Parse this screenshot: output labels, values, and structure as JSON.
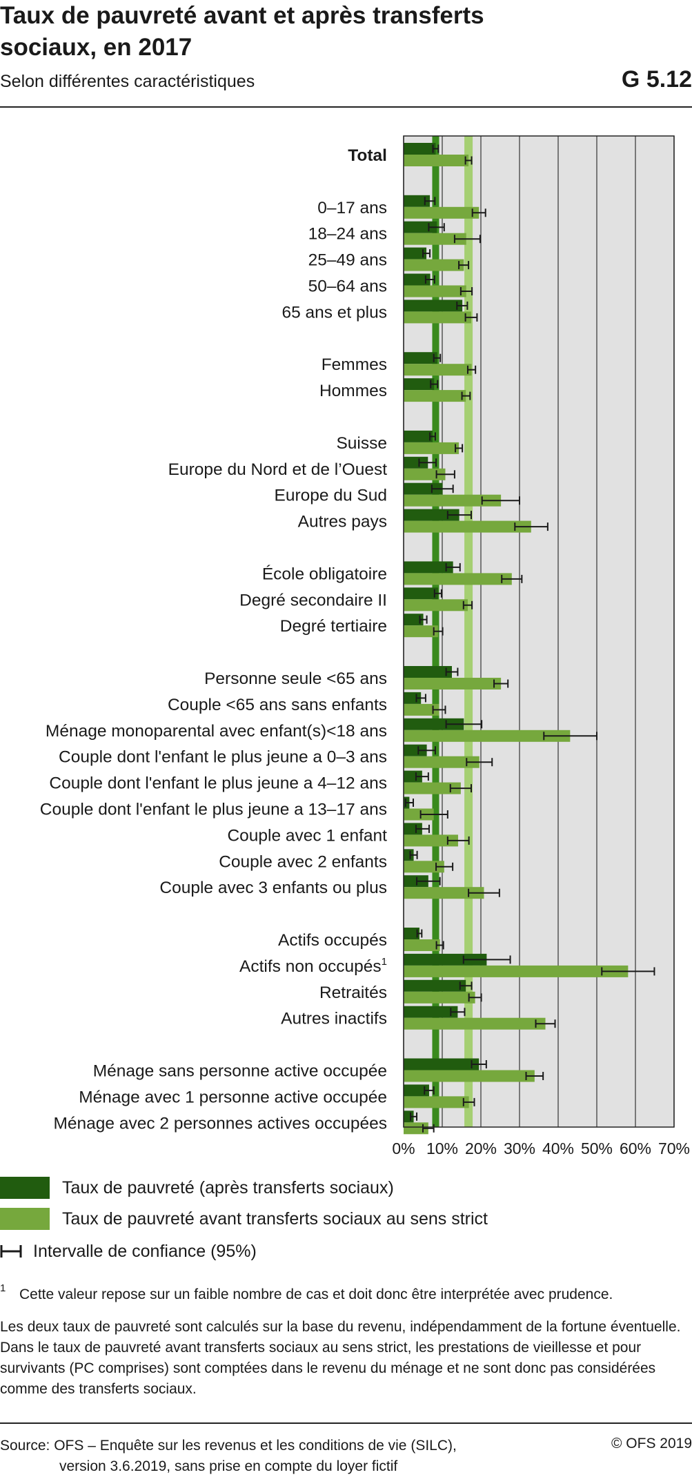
{
  "header": {
    "title": "Taux de pauvreté avant et après transferts sociaux, en 2017",
    "subtitle": "Selon différentes caractéristiques",
    "code": "G 5.12"
  },
  "chart_data": {
    "type": "bar",
    "orientation": "horizontal",
    "xlim": [
      0,
      70
    ],
    "x_ticks": [
      "0%",
      "10%",
      "20%",
      "30%",
      "40%",
      "50%",
      "60%",
      "70%"
    ],
    "grid": true,
    "reference_lines": {
      "after_total": 8.3,
      "before_total": 16.8
    },
    "groups": [
      {
        "categories": [
          {
            "label": "Total",
            "bold": true,
            "after": 8.3,
            "after_ci": [
              7.6,
              9.0
            ],
            "before": 16.8,
            "before_ci": [
              16.0,
              17.6
            ]
          }
        ]
      },
      {
        "categories": [
          {
            "label": "0–17 ans",
            "after": 6.8,
            "after_ci": [
              5.5,
              8.1
            ],
            "before": 19.5,
            "before_ci": [
              17.8,
              21.2
            ]
          },
          {
            "label": "18–24 ans",
            "after": 8.6,
            "after_ci": [
              6.5,
              10.5
            ],
            "before": 16.2,
            "before_ci": [
              13.2,
              19.8
            ]
          },
          {
            "label": "25–49 ans",
            "after": 5.9,
            "after_ci": [
              5.0,
              6.8
            ],
            "before": 15.6,
            "before_ci": [
              14.3,
              16.8
            ]
          },
          {
            "label": "50–64 ans",
            "after": 6.9,
            "after_ci": [
              5.7,
              8.0
            ],
            "before": 16.2,
            "before_ci": [
              14.8,
              17.7
            ]
          },
          {
            "label": "65 ans et plus",
            "after": 15.2,
            "after_ci": [
              13.8,
              16.5
            ],
            "before": 17.5,
            "before_ci": [
              16.0,
              19.0
            ]
          }
        ]
      },
      {
        "categories": [
          {
            "label": "Femmes",
            "after": 8.7,
            "after_ci": [
              7.8,
              9.5
            ],
            "before": 17.6,
            "before_ci": [
              16.6,
              18.6
            ]
          },
          {
            "label": "Hommes",
            "after": 7.9,
            "after_ci": [
              7.0,
              8.8
            ],
            "before": 16.1,
            "before_ci": [
              15.1,
              17.2
            ]
          }
        ]
      },
      {
        "categories": [
          {
            "label": "Suisse",
            "after": 7.5,
            "after_ci": [
              6.8,
              8.2
            ],
            "before": 14.3,
            "before_ci": [
              13.4,
              15.2
            ]
          },
          {
            "label": "Europe du Nord et de l’Ouest",
            "after": 6.3,
            "after_ci": [
              4.0,
              8.4
            ],
            "before": 10.8,
            "before_ci": [
              8.5,
              13.2
            ]
          },
          {
            "label": "Europe du Sud",
            "after": 10.1,
            "after_ci": [
              7.3,
              12.8
            ],
            "before": 25.2,
            "before_ci": [
              20.3,
              30.0
            ]
          },
          {
            "label": "Autres pays",
            "after": 14.4,
            "after_ci": [
              11.4,
              17.5
            ],
            "before": 33.0,
            "before_ci": [
              28.8,
              37.3
            ]
          }
        ]
      },
      {
        "categories": [
          {
            "label": "École obligatoire",
            "after": 12.8,
            "after_ci": [
              11.0,
              14.6
            ],
            "before": 28.0,
            "before_ci": [
              25.4,
              30.6
            ]
          },
          {
            "label": "Degré secondaire II",
            "after": 8.9,
            "after_ci": [
              8.0,
              9.8
            ],
            "before": 16.6,
            "before_ci": [
              15.5,
              17.7
            ]
          },
          {
            "label": "Degré tertiaire",
            "after": 5.1,
            "after_ci": [
              4.2,
              6.0
            ],
            "before": 8.9,
            "before_ci": [
              7.8,
              10.1
            ]
          }
        ]
      },
      {
        "categories": [
          {
            "label": "Personne seule  <65 ans",
            "after": 12.5,
            "after_ci": [
              11.0,
              14.0
            ],
            "before": 25.2,
            "before_ci": [
              23.4,
              27.0
            ]
          },
          {
            "label": "Couple  <65 ans sans enfants",
            "after": 4.5,
            "after_ci": [
              3.3,
              5.7
            ],
            "before": 9.2,
            "before_ci": [
              7.6,
              10.8
            ]
          },
          {
            "label": "Ménage monoparental avec enfant(s)<18 ans",
            "after": 15.6,
            "after_ci": [
              11.0,
              20.2
            ],
            "before": 43.1,
            "before_ci": [
              36.3,
              50.0
            ]
          },
          {
            "label": "Couple dont l'enfant le plus jeune a 0–3 ans",
            "after": 6.0,
            "after_ci": [
              3.8,
              8.2
            ],
            "before": 19.6,
            "before_ci": [
              16.3,
              22.9
            ]
          },
          {
            "label": "Couple dont l'enfant le plus jeune a 4–12 ans",
            "after": 4.8,
            "after_ci": [
              3.2,
              6.4
            ],
            "before": 14.8,
            "before_ci": [
              12.1,
              17.5
            ]
          },
          {
            "label": "Couple dont l'enfant le plus jeune a 13–17 ans",
            "after": 1.5,
            "after_ci": [
              0.5,
              2.5
            ],
            "before": 7.8,
            "before_ci": [
              4.4,
              11.4
            ]
          },
          {
            "label": "Couple avec 1 enfant",
            "after": 4.8,
            "after_ci": [
              3.2,
              6.6
            ],
            "before": 14.1,
            "before_ci": [
              11.4,
              16.9
            ]
          },
          {
            "label": "Couple avec 2 enfants",
            "after": 2.6,
            "after_ci": [
              1.7,
              3.5
            ],
            "before": 10.5,
            "before_ci": [
              8.4,
              12.7
            ]
          },
          {
            "label": "Couple avec 3 enfants ou plus",
            "after": 6.4,
            "after_ci": [
              3.4,
              9.4
            ],
            "before": 20.8,
            "before_ci": [
              16.8,
              24.8
            ]
          }
        ]
      },
      {
        "categories": [
          {
            "label": "Actifs occupés",
            "after": 4.1,
            "after_ci": [
              3.5,
              4.7
            ],
            "before": 9.4,
            "before_ci": [
              8.5,
              10.3
            ]
          },
          {
            "label": "Actifs non occupés",
            "footnote": "1",
            "after": 21.5,
            "after_ci": [
              15.5,
              27.6
            ],
            "before": 58.1,
            "before_ci": [
              51.3,
              64.9
            ]
          },
          {
            "label": "Retraités",
            "after": 16.1,
            "after_ci": [
              14.6,
              17.6
            ],
            "before": 18.5,
            "before_ci": [
              16.9,
              20.1
            ]
          },
          {
            "label": "Autres inactifs",
            "after": 14.0,
            "after_ci": [
              12.2,
              15.8
            ],
            "before": 36.7,
            "before_ci": [
              34.2,
              39.2
            ]
          }
        ]
      },
      {
        "categories": [
          {
            "label": "Ménage sans personne active occupée",
            "after": 19.5,
            "after_ci": [
              17.6,
              21.4
            ],
            "before": 33.9,
            "before_ci": [
              31.7,
              36.1
            ]
          },
          {
            "label": "Ménage avec 1 personne active occupée",
            "after": 6.6,
            "after_ci": [
              5.4,
              7.8
            ],
            "before": 16.9,
            "before_ci": [
              15.5,
              18.3
            ]
          },
          {
            "label": "Ménage avec 2 personnes actives occupées",
            "after": 2.6,
            "after_ci": [
              1.8,
              3.4
            ],
            "before": 6.4,
            "before_ci": [
              5.0,
              7.8
            ]
          }
        ]
      }
    ],
    "colors": {
      "after": "#215c0f",
      "before": "#76a83d",
      "ref_line_after": "#3a8a1d",
      "ref_line_before": "#a5cf72",
      "plot_bg": "#e1e1e1",
      "gridline": "#333333",
      "ci": "#1a1a1a"
    }
  },
  "legend": {
    "after_label": "Taux de pauvreté (après transferts sociaux)",
    "before_label": "Taux de pauvreté avant transferts sociaux au sens strict",
    "ci_label": "Intervalle de confiance (95%)"
  },
  "footnote": {
    "mark": "1",
    "text": "Cette valeur repose sur un faible nombre de cas et doit donc être interprétée avec prudence."
  },
  "note": "Les deux taux de pauvreté sont calculés sur la base du revenu, indépendamment de la fortune éventuelle. Dans le taux de pauvreté avant transferts sociaux au sens strict, les prestations de vieillesse et pour survivants (PC comprises) sont comptées dans le revenu du ménage et ne sont donc pas considérées comme des transferts sociaux.",
  "source": {
    "line1": "Source: OFS – Enquête sur les revenus et les conditions de vie (SILC),",
    "line2": "version 3.6.2019, sans prise en compte du loyer fictif"
  },
  "copyright": "© OFS 2019"
}
